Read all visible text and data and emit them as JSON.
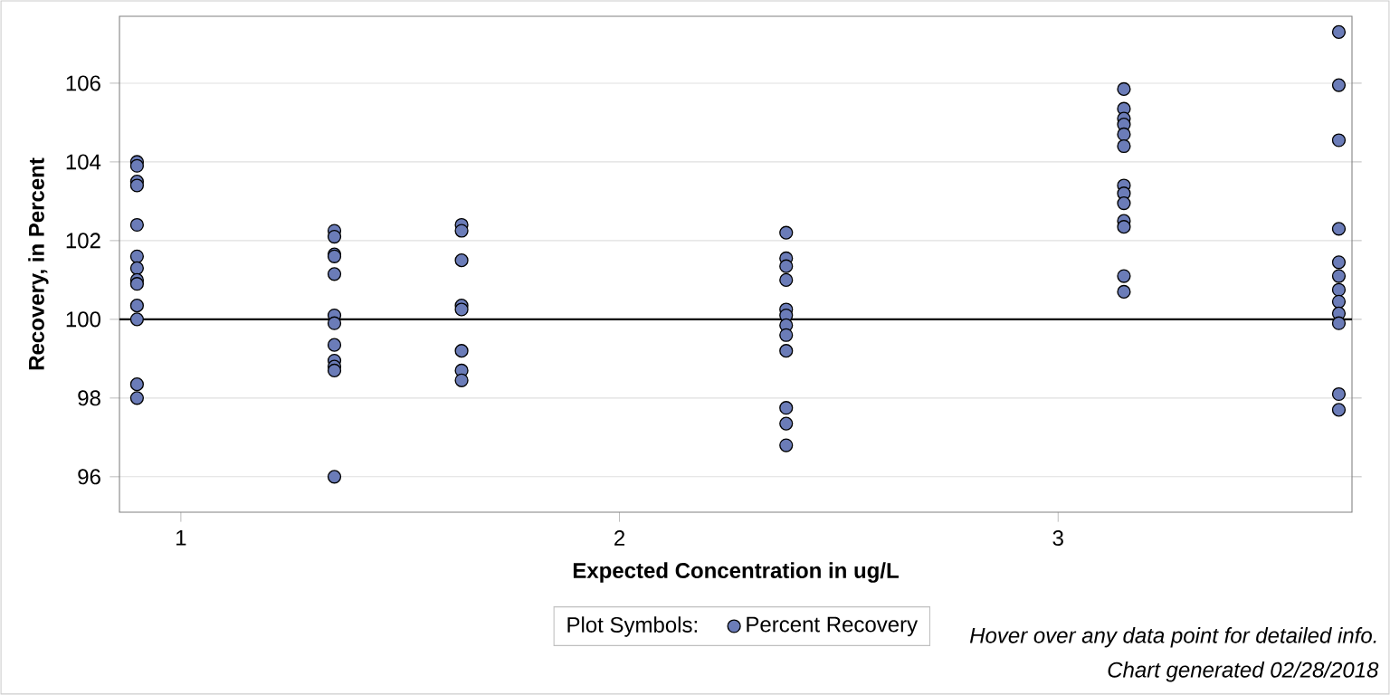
{
  "chart_data": {
    "type": "scatter",
    "xlabel": "Expected Concentration in ug/L",
    "ylabel": "Recovery, in Percent",
    "legend_title": "Plot Symbols:",
    "legend": "bottom",
    "marker": "circle",
    "grid": "y",
    "xlim": [
      0.86,
      3.67
    ],
    "ylim": [
      95.1,
      107.7
    ],
    "xticks": [
      1,
      2,
      3
    ],
    "yticks": [
      96,
      98,
      100,
      102,
      104,
      106
    ],
    "ref_lines": [
      {
        "axis": "y",
        "value": 100,
        "color": "#000000"
      }
    ],
    "series": [
      {
        "name": "Percent Recovery",
        "color": "#6b7cb8",
        "x": [
          0.9,
          0.9,
          0.9,
          0.9,
          0.9,
          0.9,
          0.9,
          0.9,
          0.9,
          0.9,
          0.9,
          0.9,
          0.9,
          1.35,
          1.35,
          1.35,
          1.35,
          1.35,
          1.35,
          1.35,
          1.35,
          1.35,
          1.35,
          1.35,
          1.35,
          1.64,
          1.64,
          1.64,
          1.64,
          1.64,
          1.64,
          1.64,
          1.64,
          2.38,
          2.38,
          2.38,
          2.38,
          2.38,
          2.38,
          2.38,
          2.38,
          2.38,
          2.38,
          2.38,
          2.38,
          3.15,
          3.15,
          3.15,
          3.15,
          3.15,
          3.15,
          3.15,
          3.15,
          3.15,
          3.15,
          3.15,
          3.15,
          3.15,
          3.64,
          3.64,
          3.64,
          3.64,
          3.64,
          3.64,
          3.64,
          3.64,
          3.64,
          3.64,
          3.64,
          3.64
        ],
        "values": [
          104.0,
          103.9,
          103.5,
          103.4,
          102.4,
          101.6,
          101.3,
          101.0,
          100.9,
          100.35,
          100.0,
          98.35,
          98.0,
          102.25,
          102.1,
          101.65,
          101.6,
          101.15,
          100.1,
          99.9,
          99.35,
          98.95,
          98.8,
          98.7,
          96.0,
          102.4,
          102.25,
          101.5,
          100.35,
          100.25,
          99.2,
          98.7,
          98.45,
          102.2,
          101.55,
          101.35,
          101.0,
          100.25,
          100.1,
          99.85,
          99.6,
          99.2,
          97.75,
          97.35,
          96.8,
          105.85,
          105.35,
          105.1,
          104.95,
          104.7,
          104.4,
          103.4,
          103.2,
          102.95,
          102.5,
          102.35,
          101.1,
          100.7,
          107.3,
          105.95,
          104.55,
          102.3,
          101.45,
          101.1,
          100.75,
          100.45,
          100.15,
          99.9,
          98.1,
          97.7
        ]
      }
    ],
    "annotations": [
      "Hover over any data point for detailed info.",
      "Chart generated 02/28/2018"
    ]
  }
}
